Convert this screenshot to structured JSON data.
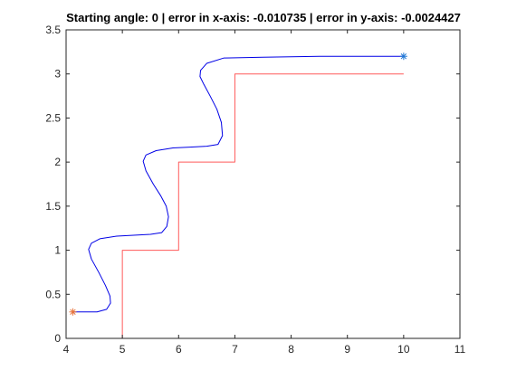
{
  "chart_data": {
    "type": "line",
    "title": "Starting angle: 0 | error in x-axis: -0.010735 | error in y-axis: -0.0024427",
    "xlabel": "",
    "ylabel": "",
    "xlim": [
      4,
      11
    ],
    "ylim": [
      0,
      3.5
    ],
    "x_ticks": [
      4,
      5,
      6,
      7,
      8,
      9,
      10,
      11
    ],
    "y_ticks": [
      0,
      0.5,
      1,
      1.5,
      2,
      2.5,
      3,
      3.5
    ],
    "x_tick_labels": [
      "4",
      "5",
      "6",
      "7",
      "8",
      "9",
      "10",
      "11"
    ],
    "y_tick_labels": [
      "0",
      "0.5",
      "1",
      "1.5",
      "2",
      "2.5",
      "3",
      "3.5"
    ],
    "grid": false,
    "legend": "none",
    "series": [
      {
        "color": "#ff5a5a",
        "style": "line",
        "x": [
          5,
          5,
          6,
          6,
          7,
          7,
          10
        ],
        "y": [
          0,
          1,
          1,
          2,
          2,
          3,
          3
        ]
      },
      {
        "color": "#0000e6",
        "style": "line",
        "x": [
          4.12,
          4.55,
          4.72,
          4.79,
          4.78,
          4.7,
          4.58,
          4.45,
          4.4,
          4.45,
          4.6,
          4.9,
          5.2,
          5.5,
          5.7,
          5.79,
          5.82,
          5.78,
          5.68,
          5.55,
          5.42,
          5.37,
          5.42,
          5.6,
          5.9,
          6.2,
          6.5,
          6.7,
          6.78,
          6.76,
          6.68,
          6.56,
          6.45,
          6.38,
          6.39,
          6.5,
          6.8,
          7.5,
          8.5,
          9.5,
          10.0
        ],
        "y": [
          0.3,
          0.3,
          0.33,
          0.4,
          0.48,
          0.6,
          0.75,
          0.9,
          1.01,
          1.08,
          1.13,
          1.16,
          1.17,
          1.18,
          1.2,
          1.27,
          1.38,
          1.5,
          1.62,
          1.75,
          1.9,
          2.01,
          2.08,
          2.13,
          2.16,
          2.17,
          2.18,
          2.2,
          2.3,
          2.45,
          2.6,
          2.75,
          2.88,
          2.97,
          3.04,
          3.12,
          3.18,
          3.19,
          3.2,
          3.2,
          3.2
        ]
      }
    ],
    "markers": [
      {
        "x": 4.12,
        "y": 0.3,
        "symbol": "*",
        "color": "#e8743b"
      },
      {
        "x": 10.0,
        "y": 3.2,
        "symbol": "*",
        "color": "#1f77d4"
      }
    ]
  }
}
